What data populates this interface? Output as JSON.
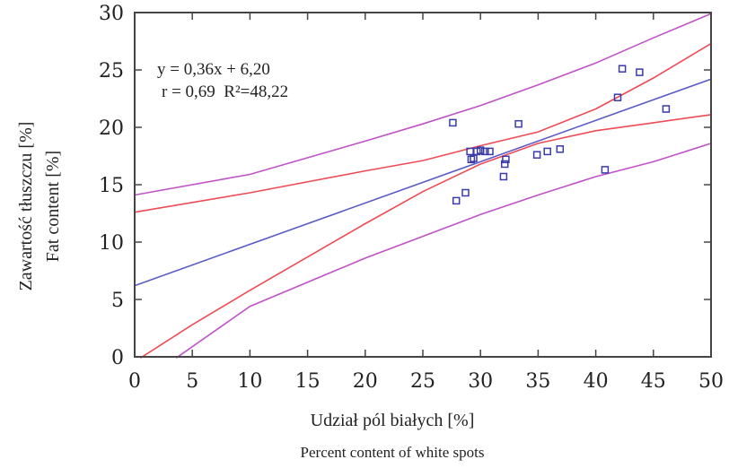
{
  "chart_data": {
    "type": "scatter",
    "xlabel": "Udział pól białych [%]",
    "xlabel_en": "Percent content of white spots",
    "ylabel": "Zawartość tłuszczu [%]",
    "ylabel_en": "Fat content [%]",
    "xlim": [
      0,
      50
    ],
    "ylim": [
      0,
      30
    ],
    "x_ticks": [
      0,
      5,
      10,
      15,
      20,
      25,
      30,
      35,
      40,
      45,
      50
    ],
    "y_ticks": [
      0,
      5,
      10,
      15,
      20,
      25,
      30
    ],
    "grid": false,
    "annotations": {
      "equation": "y = 0,36x + 6,20",
      "stats": "r = 0,69  R²=48,22"
    },
    "colors": {
      "points": "#3a3aa8",
      "regression": "#5b5bc6",
      "confidence": "#ee4b55",
      "prediction": "#c052c7"
    },
    "points": [
      {
        "x": 27.6,
        "y": 20.4
      },
      {
        "x": 27.9,
        "y": 13.6
      },
      {
        "x": 28.7,
        "y": 14.3
      },
      {
        "x": 29.1,
        "y": 17.9
      },
      {
        "x": 29.2,
        "y": 17.2
      },
      {
        "x": 29.4,
        "y": 17.3
      },
      {
        "x": 29.7,
        "y": 17.9
      },
      {
        "x": 30.0,
        "y": 18.0
      },
      {
        "x": 30.4,
        "y": 17.9
      },
      {
        "x": 30.8,
        "y": 17.9
      },
      {
        "x": 32.0,
        "y": 15.7
      },
      {
        "x": 32.1,
        "y": 16.8
      },
      {
        "x": 32.2,
        "y": 17.2
      },
      {
        "x": 33.3,
        "y": 20.3
      },
      {
        "x": 34.9,
        "y": 17.6
      },
      {
        "x": 35.8,
        "y": 17.9
      },
      {
        "x": 36.9,
        "y": 18.1
      },
      {
        "x": 40.8,
        "y": 16.3
      },
      {
        "x": 41.9,
        "y": 22.6
      },
      {
        "x": 42.3,
        "y": 25.1
      },
      {
        "x": 43.8,
        "y": 24.8
      },
      {
        "x": 46.1,
        "y": 21.6
      }
    ],
    "series": [
      {
        "role": "regression",
        "x": [
          0,
          50
        ],
        "y": [
          6.2,
          24.2
        ]
      },
      {
        "role": "confidence_upper",
        "x": [
          0,
          10,
          20,
          25,
          30,
          35,
          40,
          45,
          50
        ],
        "y": [
          12.6,
          14.3,
          16.2,
          17.1,
          18.4,
          19.6,
          21.6,
          24.3,
          27.3
        ]
      },
      {
        "role": "confidence_lower",
        "x": [
          0.5,
          5,
          10,
          20,
          25,
          30,
          35,
          40,
          45,
          50
        ],
        "y": [
          -0.1,
          2.8,
          5.8,
          11.6,
          14.4,
          16.8,
          18.6,
          19.7,
          20.4,
          21.1
        ]
      },
      {
        "role": "prediction_upper",
        "x": [
          0,
          10,
          20,
          25,
          30,
          35,
          40,
          45,
          50
        ],
        "y": [
          14.1,
          15.9,
          18.8,
          20.3,
          21.9,
          23.7,
          25.6,
          27.8,
          29.9
        ]
      },
      {
        "role": "prediction_lower",
        "x": [
          3.6,
          10,
          20,
          25,
          30,
          35,
          40,
          45,
          50
        ],
        "y": [
          -0.1,
          4.4,
          8.6,
          10.5,
          12.4,
          14.1,
          15.7,
          17.0,
          18.6
        ]
      }
    ]
  }
}
